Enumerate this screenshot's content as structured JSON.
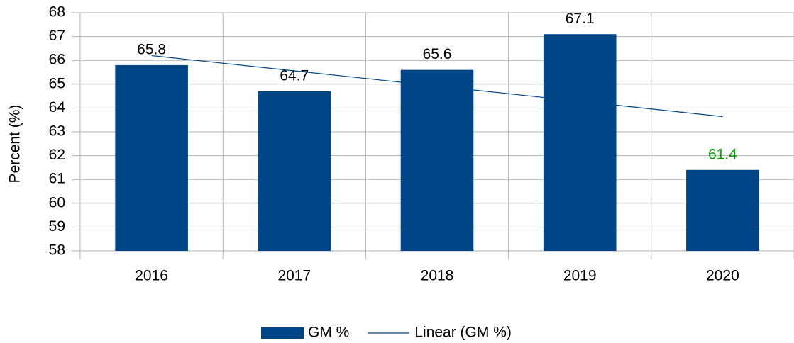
{
  "chart_data": {
    "type": "bar",
    "y_label": "Percent (%)",
    "categories": [
      "2016",
      "2017",
      "2018",
      "2019",
      "2020"
    ],
    "series": [
      {
        "name": "GM %",
        "color": "#004586",
        "values": [
          65.8,
          64.7,
          65.6,
          67.1,
          61.4
        ],
        "label_colors": [
          "#000000",
          "#000000",
          "#000000",
          "#000000",
          "#00a000"
        ]
      },
      {
        "name": "Linear (GM %)",
        "type": "line",
        "color": "#004586",
        "values": [
          66.2,
          65.56,
          64.92,
          64.28,
          63.64
        ]
      }
    ],
    "ylim": [
      58,
      68
    ],
    "yticks": [
      58,
      59,
      60,
      61,
      62,
      63,
      64,
      65,
      66,
      67,
      68
    ],
    "grid": true,
    "legend": "bottom"
  }
}
